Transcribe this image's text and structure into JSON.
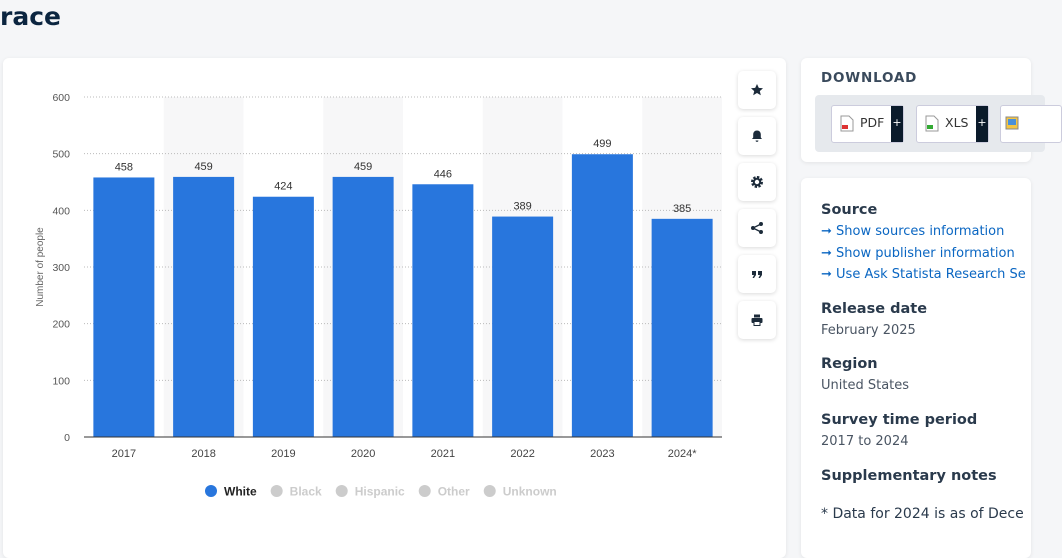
{
  "header": {
    "title": "race"
  },
  "chart_data": {
    "type": "bar",
    "categories": [
      "2017",
      "2018",
      "2019",
      "2020",
      "2021",
      "2022",
      "2023",
      "2024*"
    ],
    "series": [
      {
        "name": "White",
        "color": "#2876dd",
        "values": [
          458,
          459,
          424,
          459,
          446,
          389,
          499,
          385
        ]
      }
    ],
    "hidden_series": [
      "Black",
      "Hispanic",
      "Other",
      "Unknown"
    ],
    "hidden_color": "#cccccc",
    "y_label": "Number of people",
    "ylim": [
      0,
      600
    ],
    "yticks": [
      0,
      100,
      200,
      300,
      400,
      500,
      600
    ],
    "grid": true
  },
  "download": {
    "title": "DOWNLOAD",
    "buttons": [
      "PDF",
      "XLS"
    ]
  },
  "details": {
    "source": {
      "title": "Source",
      "links": [
        "Show sources information",
        "Show publisher information",
        "Use Ask Statista Research Se"
      ]
    },
    "fields": [
      {
        "label": "Release date",
        "value": "February 2025"
      },
      {
        "label": "Region",
        "value": "United States"
      },
      {
        "label": "Survey time period",
        "value": "2017 to 2024"
      }
    ],
    "notes": {
      "title": "Supplementary notes",
      "text": "* Data for 2024 is as of Dece"
    }
  }
}
